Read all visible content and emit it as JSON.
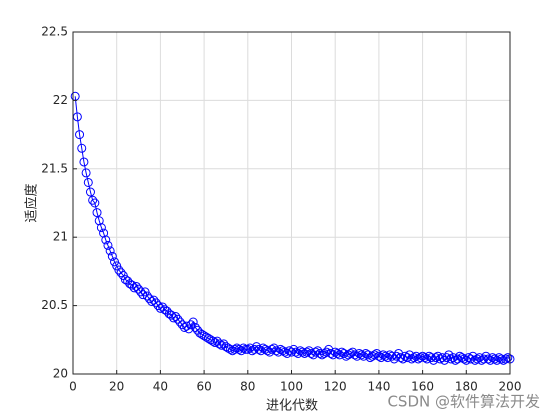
{
  "chart_data": {
    "type": "line",
    "xlabel": "进化代数",
    "ylabel": "适应度",
    "watermark": "CSDN @软件算法开发",
    "grid": true,
    "marker": "circle",
    "xlim": [
      0,
      200
    ],
    "ylim": [
      20,
      22.5
    ],
    "xticks": [
      0,
      20,
      40,
      60,
      80,
      100,
      120,
      140,
      160,
      180,
      200
    ],
    "yticks": [
      20,
      20.5,
      21,
      21.5,
      22,
      22.5
    ],
    "x": [
      1,
      2,
      3,
      4,
      5,
      6,
      7,
      8,
      9,
      10,
      11,
      12,
      13,
      14,
      15,
      16,
      17,
      18,
      19,
      20,
      21,
      22,
      23,
      24,
      25,
      26,
      27,
      28,
      29,
      30,
      31,
      32,
      33,
      34,
      35,
      36,
      37,
      38,
      39,
      40,
      41,
      42,
      43,
      44,
      45,
      46,
      47,
      48,
      49,
      50,
      51,
      52,
      53,
      54,
      55,
      56,
      57,
      58,
      59,
      60,
      61,
      62,
      63,
      64,
      65,
      66,
      67,
      68,
      69,
      70,
      71,
      72,
      73,
      74,
      75,
      76,
      77,
      78,
      79,
      80,
      81,
      82,
      83,
      84,
      85,
      86,
      87,
      88,
      89,
      90,
      91,
      92,
      93,
      94,
      95,
      96,
      97,
      98,
      99,
      100,
      101,
      102,
      103,
      104,
      105,
      106,
      107,
      108,
      109,
      110,
      111,
      112,
      113,
      114,
      115,
      116,
      117,
      118,
      119,
      120,
      121,
      122,
      123,
      124,
      125,
      126,
      127,
      128,
      129,
      130,
      131,
      132,
      133,
      134,
      135,
      136,
      137,
      138,
      139,
      140,
      141,
      142,
      143,
      144,
      145,
      146,
      147,
      148,
      149,
      150,
      151,
      152,
      153,
      154,
      155,
      156,
      157,
      158,
      159,
      160,
      161,
      162,
      163,
      164,
      165,
      166,
      167,
      168,
      169,
      170,
      171,
      172,
      173,
      174,
      175,
      176,
      177,
      178,
      179,
      180,
      181,
      182,
      183,
      184,
      185,
      186,
      187,
      188,
      189,
      190,
      191,
      192,
      193,
      194,
      195,
      196,
      197,
      198,
      199,
      200
    ],
    "series": [
      {
        "color": "#0000ff",
        "values": [
          22.03,
          21.88,
          21.75,
          21.65,
          21.55,
          21.47,
          21.4,
          21.33,
          21.27,
          21.25,
          21.18,
          21.12,
          21.07,
          21.03,
          20.98,
          20.94,
          20.9,
          20.86,
          20.82,
          20.79,
          20.76,
          20.74,
          20.72,
          20.69,
          20.68,
          20.66,
          20.65,
          20.63,
          20.64,
          20.62,
          20.6,
          20.58,
          20.6,
          20.57,
          20.55,
          20.53,
          20.54,
          20.52,
          20.5,
          20.48,
          20.49,
          20.47,
          20.46,
          20.44,
          20.43,
          20.41,
          20.42,
          20.4,
          20.38,
          20.36,
          20.34,
          20.35,
          20.33,
          20.36,
          20.38,
          20.34,
          20.32,
          20.3,
          20.29,
          20.28,
          20.27,
          20.26,
          20.25,
          20.24,
          20.23,
          20.24,
          20.22,
          20.21,
          20.22,
          20.2,
          20.19,
          20.18,
          20.17,
          20.18,
          20.19,
          20.18,
          20.17,
          20.19,
          20.18,
          20.18,
          20.19,
          20.17,
          20.18,
          20.2,
          20.18,
          20.17,
          20.19,
          20.18,
          20.17,
          20.16,
          20.18,
          20.19,
          20.17,
          20.16,
          20.18,
          20.17,
          20.16,
          20.15,
          20.17,
          20.16,
          20.18,
          20.16,
          20.15,
          20.17,
          20.16,
          20.15,
          20.16,
          20.17,
          20.15,
          20.14,
          20.16,
          20.17,
          20.15,
          20.14,
          20.15,
          20.16,
          20.18,
          20.15,
          20.14,
          20.16,
          20.15,
          20.14,
          20.16,
          20.15,
          20.13,
          20.14,
          20.15,
          20.16,
          20.14,
          20.13,
          20.15,
          20.14,
          20.13,
          20.15,
          20.14,
          20.12,
          20.13,
          20.14,
          20.15,
          20.13,
          20.12,
          20.14,
          20.13,
          20.12,
          20.14,
          20.13,
          20.11,
          20.13,
          20.15,
          20.12,
          20.11,
          20.13,
          20.12,
          20.14,
          20.11,
          20.12,
          20.13,
          20.11,
          20.12,
          20.13,
          20.12,
          20.11,
          20.13,
          20.12,
          20.1,
          20.12,
          20.13,
          20.11,
          20.12,
          20.1,
          20.12,
          20.14,
          20.11,
          20.12,
          20.1,
          20.11,
          20.13,
          20.12,
          20.11,
          20.1,
          20.12,
          20.11,
          20.13,
          20.1,
          20.11,
          20.12,
          20.1,
          20.11,
          20.13,
          20.11,
          20.1,
          20.12,
          20.11,
          20.1,
          20.12,
          20.11,
          20.1,
          20.11,
          20.12,
          20.11
        ]
      }
    ]
  }
}
